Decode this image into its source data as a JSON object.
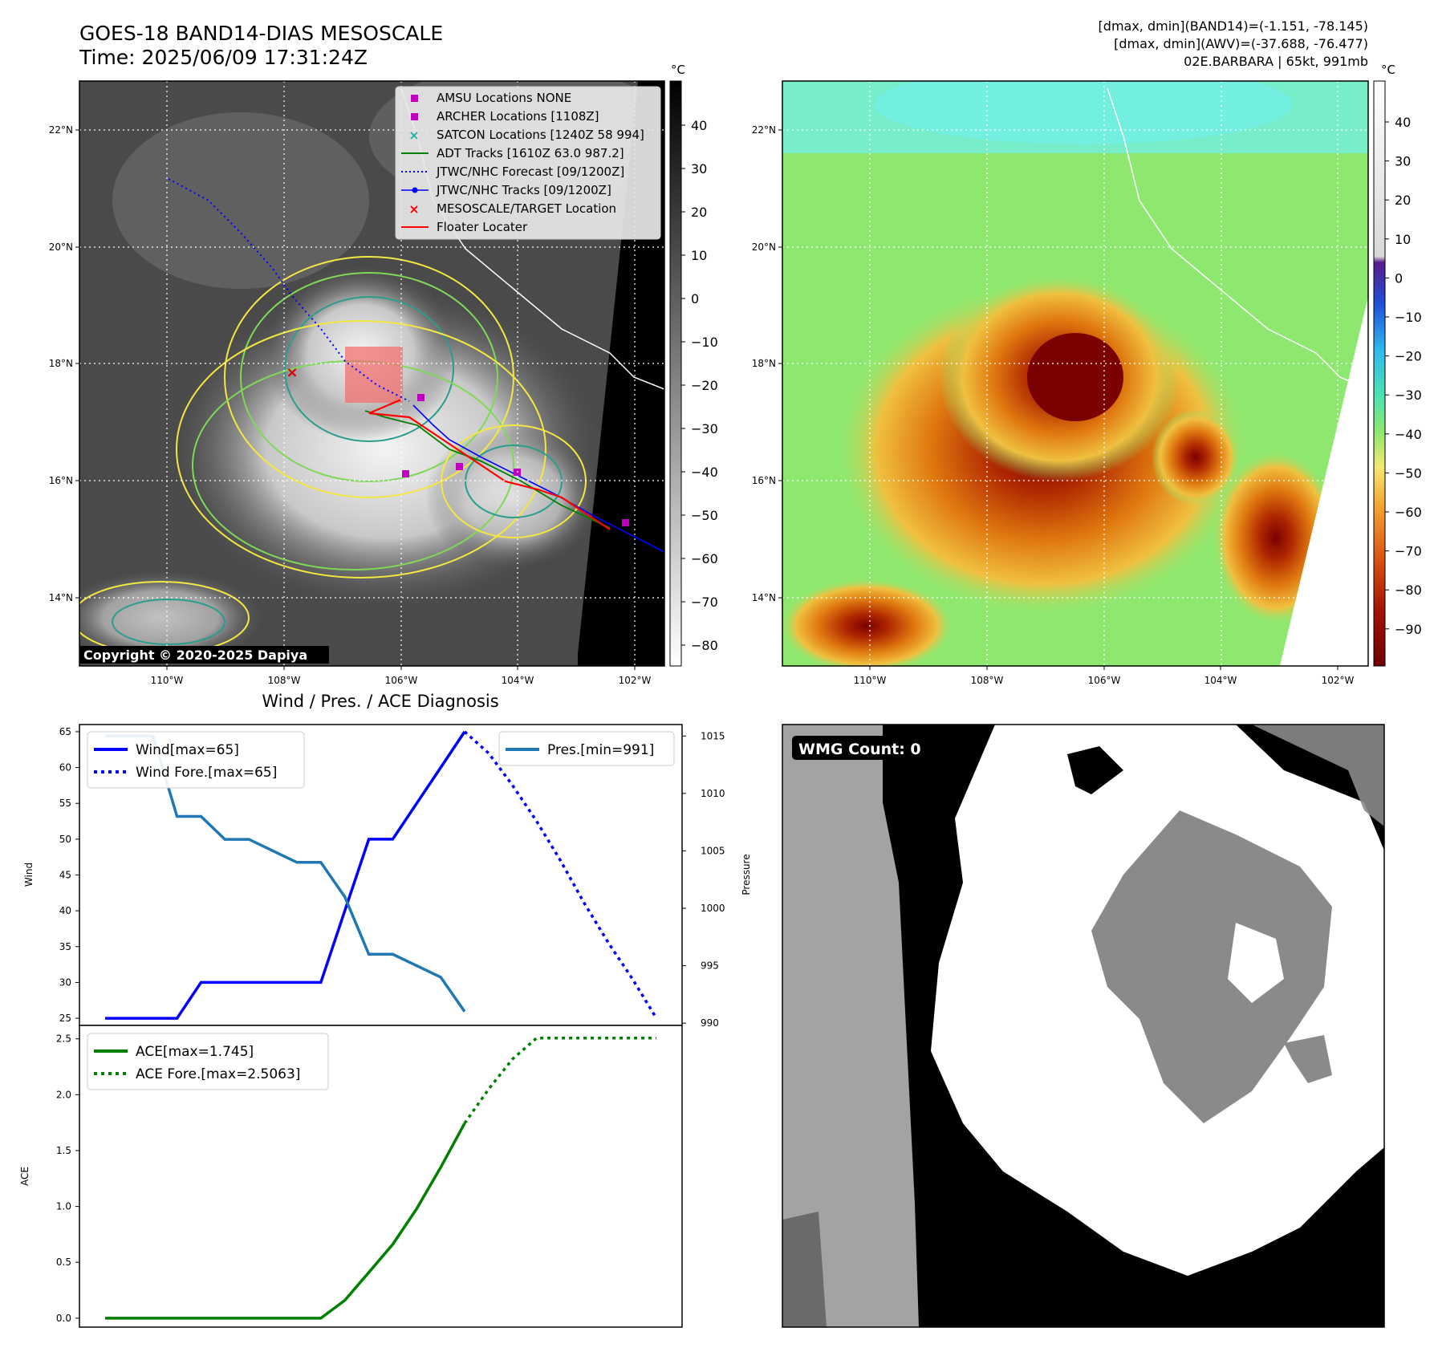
{
  "header": {
    "title": "GOES-18 BAND14-DIAS MESOSCALE",
    "time": "Time: 2025/06/09 17:31:24Z",
    "stats_band14": "[dmax, dmin](BAND14)=(-1.151, -78.145)",
    "stats_awv": "[dmax, dmin](AWV)=(-37.688, -76.477)",
    "storm": "02E.BARBARA | 65kt, 991mb"
  },
  "map": {
    "lon_ticks": [
      "110°W",
      "108°W",
      "106°W",
      "104°W",
      "102°W"
    ],
    "lat_ticks": [
      "22°N",
      "20°N",
      "18°N",
      "16°N",
      "14°N"
    ],
    "copyright": "Copyright © 2020-2025 Dapiya",
    "unit": "°C",
    "gray_cbar_ticks": [
      "40",
      "30",
      "20",
      "10",
      "0",
      "−10",
      "−20",
      "−30",
      "−40",
      "−50",
      "−60",
      "−70",
      "−80"
    ],
    "color_cbar_ticks": [
      "40",
      "30",
      "20",
      "10",
      "0",
      "−10",
      "−20",
      "−30",
      "−40",
      "−50",
      "−60",
      "−70",
      "−80",
      "−90"
    ],
    "legend": [
      {
        "label": "AMSU Locations NONE",
        "marker": "square",
        "color": "#c000c0"
      },
      {
        "label": "ARCHER Locations [1108Z]",
        "marker": "square",
        "color": "#c000c0"
      },
      {
        "label": "SATCON Locations [1240Z 58 994]",
        "marker": "x",
        "color": "#20b2aa"
      },
      {
        "label": "ADT Tracks [1610Z 63.0 987.2]",
        "marker": "line",
        "color": "#008000"
      },
      {
        "label": "JTWC/NHC Forecast [09/1200Z]",
        "marker": "dotted",
        "color": "#0000ff"
      },
      {
        "label": "JTWC/NHC Tracks [09/1200Z]",
        "marker": "line-dot",
        "color": "#0000ff"
      },
      {
        "label": "MESOSCALE/TARGET Location",
        "marker": "x",
        "color": "#ff0000"
      },
      {
        "label": "Floater Locater",
        "marker": "line",
        "color": "#ff0000"
      }
    ],
    "wmg": "WMG Count: 0"
  },
  "chart_data": [
    {
      "type": "line",
      "title": "Wind / Pres. / ACE Diagnosis",
      "ylabel": "Wind",
      "y2label": "Pressure",
      "ylim": [
        24,
        66
      ],
      "y2lim": [
        989.8,
        1016
      ],
      "yticks": [
        "25",
        "30",
        "35",
        "40",
        "45",
        "50",
        "55",
        "60",
        "65"
      ],
      "y2ticks": [
        "990",
        "995",
        "1000",
        "1005",
        "1010",
        "1015"
      ],
      "series": [
        {
          "name": "Wind[max=65]",
          "style": "solid",
          "color": "#0000ff",
          "axis": "left",
          "x": [
            0,
            1,
            2,
            3,
            4,
            5,
            6,
            7,
            8,
            9,
            10,
            11,
            12,
            13,
            14,
            15
          ],
          "y": [
            25,
            25,
            25,
            25,
            30,
            30,
            30,
            30,
            30,
            30,
            40,
            50,
            50,
            55,
            60,
            65
          ]
        },
        {
          "name": "Wind Fore.[max=65]",
          "style": "dotted",
          "color": "#0000ff",
          "axis": "left",
          "x": [
            15,
            16,
            17,
            18,
            19,
            20,
            21,
            22,
            23
          ],
          "y": [
            65,
            62,
            57.5,
            52.5,
            47,
            41,
            35.5,
            30.5,
            25
          ]
        },
        {
          "name": "Pres.[min=991]",
          "style": "solid",
          "color": "#1f77b4",
          "axis": "right",
          "x": [
            0,
            1,
            2,
            3,
            4,
            5,
            6,
            7,
            8,
            9,
            10,
            11,
            12,
            13,
            14,
            15
          ],
          "y": [
            1015,
            1015,
            1015,
            1008,
            1008,
            1006,
            1006,
            1005,
            1004,
            1004,
            1001,
            996,
            996,
            995,
            994,
            991
          ]
        }
      ]
    },
    {
      "type": "line",
      "ylabel": "ACE",
      "ylim": [
        -0.08,
        2.62
      ],
      "yticks": [
        "0.0",
        "0.5",
        "1.0",
        "1.5",
        "2.0",
        "2.5"
      ],
      "series": [
        {
          "name": "ACE[max=1.745]",
          "style": "solid",
          "color": "#008000",
          "x": [
            0,
            1,
            2,
            3,
            4,
            5,
            6,
            7,
            8,
            9,
            10,
            11,
            12,
            13,
            14,
            15
          ],
          "y": [
            0,
            0,
            0,
            0,
            0,
            0,
            0,
            0,
            0,
            0,
            0.16,
            0.41,
            0.66,
            0.98,
            1.35,
            1.745
          ]
        },
        {
          "name": "ACE Fore.[max=2.5063]",
          "style": "dotted",
          "color": "#008000",
          "x": [
            15,
            16,
            17,
            18,
            19,
            20,
            21,
            22,
            23
          ],
          "y": [
            1.745,
            2.05,
            2.32,
            2.5063,
            2.5063,
            2.5063,
            2.5063,
            2.5063,
            2.5063
          ]
        }
      ]
    }
  ]
}
